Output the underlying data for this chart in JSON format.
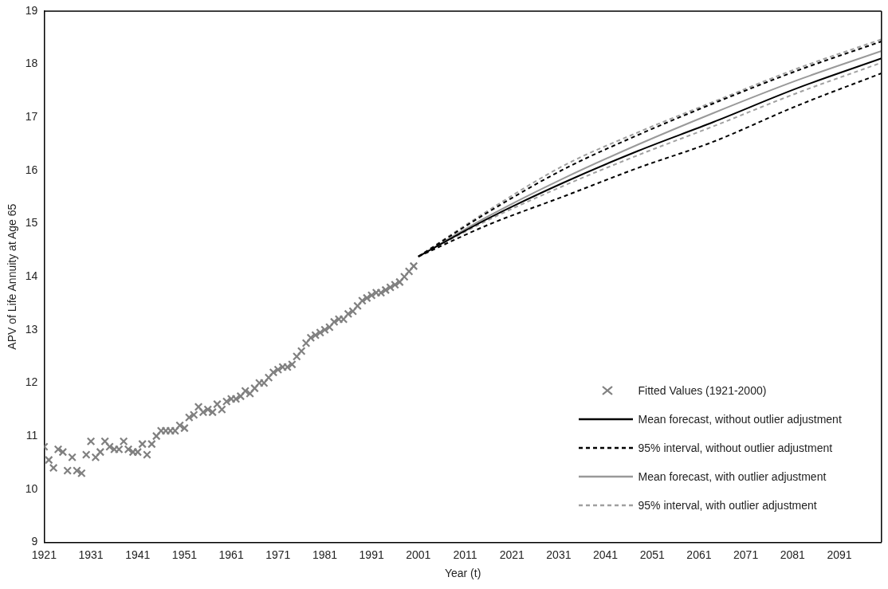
{
  "chart_data": {
    "type": "line",
    "xlabel": "Year (t)",
    "ylabel": "APV of Life Annuity at Age 65",
    "xlim": [
      1921,
      2100
    ],
    "xticks": [
      1921,
      1931,
      1941,
      1951,
      1961,
      1971,
      1981,
      1991,
      2001,
      2011,
      2021,
      2031,
      2041,
      2051,
      2061,
      2071,
      2081,
      2091
    ],
    "ylim": [
      9,
      19
    ],
    "yticks": [
      9,
      10,
      11,
      12,
      13,
      14,
      15,
      16,
      17,
      18,
      19
    ],
    "grid": false,
    "legend": "bottom right",
    "series": [
      {
        "name": "Fitted Values (1921-2000)",
        "type": "scatter",
        "marker": "cross",
        "color": "#808080",
        "x": [
          1921,
          1922,
          1923,
          1924,
          1925,
          1926,
          1927,
          1928,
          1929,
          1930,
          1931,
          1932,
          1933,
          1934,
          1935,
          1936,
          1937,
          1938,
          1939,
          1940,
          1941,
          1942,
          1943,
          1944,
          1945,
          1946,
          1947,
          1948,
          1949,
          1950,
          1951,
          1952,
          1953,
          1954,
          1955,
          1956,
          1957,
          1958,
          1959,
          1960,
          1961,
          1962,
          1963,
          1964,
          1965,
          1966,
          1967,
          1968,
          1969,
          1970,
          1971,
          1972,
          1973,
          1974,
          1975,
          1976,
          1977,
          1978,
          1979,
          1980,
          1981,
          1982,
          1983,
          1984,
          1985,
          1986,
          1987,
          1988,
          1989,
          1990,
          1991,
          1992,
          1993,
          1994,
          1995,
          1996,
          1997,
          1998,
          1999,
          2000
        ],
        "values": [
          10.8,
          10.55,
          10.4,
          10.75,
          10.7,
          10.35,
          10.6,
          10.35,
          10.3,
          10.65,
          10.9,
          10.6,
          10.7,
          10.9,
          10.8,
          10.75,
          10.75,
          10.9,
          10.75,
          10.7,
          10.7,
          10.85,
          10.65,
          10.85,
          11.0,
          11.1,
          11.1,
          11.1,
          11.1,
          11.2,
          11.15,
          11.35,
          11.4,
          11.55,
          11.45,
          11.5,
          11.45,
          11.6,
          11.5,
          11.65,
          11.7,
          11.7,
          11.75,
          11.85,
          11.8,
          11.9,
          12.0,
          12.0,
          12.1,
          12.2,
          12.25,
          12.3,
          12.3,
          12.35,
          12.5,
          12.6,
          12.75,
          12.85,
          12.9,
          12.95,
          13.0,
          13.05,
          13.15,
          13.2,
          13.2,
          13.3,
          13.35,
          13.45,
          13.55,
          13.6,
          13.65,
          13.7,
          13.7,
          13.75,
          13.8,
          13.85,
          13.9,
          14.0,
          14.1,
          14.2
        ]
      },
      {
        "name": "Mean forecast, without outlier adjustment",
        "type": "line",
        "marker": "none",
        "line_style": "solid",
        "color": "#000000",
        "x": [
          2001,
          2016,
          2032,
          2048,
          2064,
          2082,
          2100
        ],
        "values": [
          14.38,
          15.1,
          15.77,
          16.37,
          16.91,
          17.55,
          18.11
        ]
      },
      {
        "name": "95% interval, without outlier adjustment",
        "type": "line",
        "marker": "none",
        "line_style": "dashed",
        "color": "#000000",
        "x": [
          2001,
          2016,
          2032,
          2048,
          2064,
          2082,
          2100
        ],
        "values": [
          14.38,
          15.22,
          16.02,
          16.67,
          17.26,
          17.88,
          18.43
        ]
      },
      {
        "type": "line",
        "marker": "none",
        "line_style": "dashed",
        "color": "#000000",
        "x": [
          2001,
          2016,
          2032,
          2048,
          2064,
          2082,
          2100
        ],
        "values": [
          14.38,
          14.98,
          15.51,
          16.05,
          16.54,
          17.22,
          17.83
        ]
      },
      {
        "name": "Mean forecast, with outlier adjustment",
        "type": "line",
        "marker": "none",
        "line_style": "solid",
        "color": "#999999",
        "x": [
          2001,
          2016,
          2032,
          2048,
          2064,
          2082,
          2100
        ],
        "values": [
          14.38,
          15.14,
          15.85,
          16.49,
          17.08,
          17.7,
          18.25
        ]
      },
      {
        "name": "95% interval, with outlier adjustment",
        "type": "line",
        "marker": "none",
        "line_style": "dashed",
        "color": "#a0a0a0",
        "x": [
          2001,
          2016,
          2032,
          2048,
          2064,
          2082,
          2100
        ],
        "values": [
          14.38,
          15.25,
          16.09,
          16.72,
          17.29,
          17.92,
          18.47
        ]
      },
      {
        "type": "line",
        "marker": "none",
        "line_style": "dashed",
        "color": "#a0a0a0",
        "x": [
          2001,
          2016,
          2032,
          2048,
          2064,
          2082,
          2100
        ],
        "values": [
          14.38,
          15.07,
          15.71,
          16.29,
          16.83,
          17.46,
          18.03
        ]
      }
    ]
  }
}
